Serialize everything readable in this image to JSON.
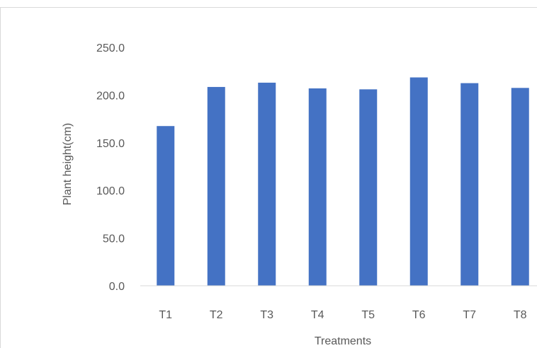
{
  "chart_data": {
    "type": "bar",
    "title": "",
    "xlabel": "Treatments",
    "ylabel": "Plant height(cm)",
    "categories": [
      "T1",
      "T2",
      "T3",
      "T4",
      "T5",
      "T6",
      "T7",
      "T8"
    ],
    "series": [
      {
        "values": [
          167.5,
          208.5,
          213.0,
          207.0,
          206.0,
          218.5,
          212.5,
          207.5
        ],
        "color": "#4472c4"
      }
    ],
    "ylim": [
      0,
      250
    ],
    "yticks": [
      "0.0",
      "50.0",
      "100.0",
      "150.0",
      "200.0",
      "250.0"
    ],
    "grid": false,
    "legend": "none"
  },
  "colors": {
    "bar": "#4472c4",
    "axis": "#d9d9d9",
    "text": "#595959",
    "border": "#d9d9d9"
  }
}
